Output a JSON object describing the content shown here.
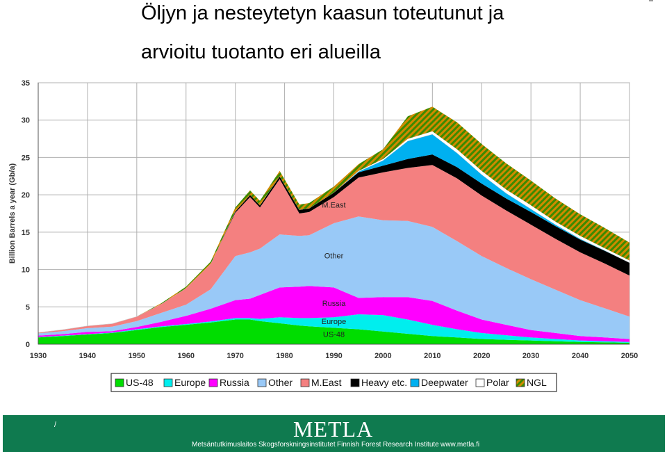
{
  "title": {
    "line1": "Öljyn ja nesteytetyn kaasun toteutunut ja",
    "line2": "arvioitu tuotanto eri alueilla"
  },
  "footer": {
    "slash": "/",
    "logo": "METLA",
    "org_fi": "Metsäntutkimuslaitos",
    "org_sv": "Skogsforskningsinstitutet",
    "org_en": "Finnish Forest Research Institute",
    "url": "www.metla.fi",
    "background_color": "#0f7a4f"
  },
  "chart_data": {
    "type": "area",
    "stacked": true,
    "title": "",
    "xlabel": "",
    "ylabel": "Billion Barrels a year (Gb/a)",
    "xlim": [
      1930,
      2050
    ],
    "ylim": [
      0,
      35
    ],
    "xticks": [
      1930,
      1940,
      1950,
      1960,
      1970,
      1980,
      1990,
      2000,
      2010,
      2020,
      2030,
      2040,
      2050
    ],
    "yticks": [
      0,
      5,
      10,
      15,
      20,
      25,
      30,
      35
    ],
    "grid": true,
    "legend": "bottom",
    "x": [
      1930,
      1935,
      1940,
      1945,
      1950,
      1955,
      1960,
      1965,
      1970,
      1973,
      1975,
      1979,
      1983,
      1985,
      1990,
      1995,
      2000,
      2005,
      2010,
      2015,
      2020,
      2025,
      2030,
      2035,
      2040,
      2045,
      2050
    ],
    "series": [
      {
        "name": "US-48",
        "color": "#00dd00",
        "values": [
          0.9,
          1.1,
          1.3,
          1.5,
          1.9,
          2.3,
          2.6,
          2.9,
          3.3,
          3.3,
          3.1,
          2.8,
          2.5,
          2.4,
          2.2,
          2.0,
          1.7,
          1.4,
          1.1,
          0.9,
          0.7,
          0.6,
          0.5,
          0.4,
          0.3,
          0.25,
          0.2
        ]
      },
      {
        "name": "Europe",
        "color": "#00eeee",
        "values": [
          0.05,
          0.05,
          0.05,
          0.05,
          0.1,
          0.1,
          0.1,
          0.15,
          0.2,
          0.2,
          0.3,
          0.8,
          1.0,
          1.1,
          1.4,
          2.0,
          2.2,
          1.9,
          1.5,
          1.1,
          0.8,
          0.6,
          0.4,
          0.3,
          0.2,
          0.15,
          0.1
        ]
      },
      {
        "name": "Russia",
        "color": "#ff00ff",
        "values": [
          0.2,
          0.2,
          0.3,
          0.2,
          0.3,
          0.6,
          1.1,
          1.7,
          2.4,
          2.6,
          3.2,
          4.0,
          4.2,
          4.3,
          4.0,
          2.2,
          2.4,
          3.0,
          3.2,
          2.5,
          1.8,
          1.4,
          1.0,
          0.8,
          0.6,
          0.5,
          0.4
        ]
      },
      {
        "name": "Other",
        "color": "#99c9f7",
        "values": [
          0.3,
          0.4,
          0.5,
          0.6,
          0.8,
          1.2,
          1.5,
          2.6,
          5.9,
          6.2,
          6.2,
          7.1,
          6.8,
          6.8,
          8.6,
          10.9,
          10.3,
          10.2,
          9.9,
          9.3,
          8.5,
          7.6,
          6.8,
          5.8,
          4.8,
          3.9,
          3.0
        ]
      },
      {
        "name": "M.East",
        "color": "#f48080",
        "values": [
          0.1,
          0.2,
          0.3,
          0.4,
          0.6,
          1.2,
          2.2,
          3.4,
          5.8,
          7.4,
          5.5,
          7.4,
          3.0,
          3.1,
          3.5,
          5.2,
          6.4,
          7.1,
          8.3,
          8.4,
          8.1,
          7.7,
          7.3,
          6.8,
          6.4,
          6.0,
          5.5
        ]
      },
      {
        "name": "Heavy etc.",
        "color": "#000000",
        "values": [
          0,
          0,
          0,
          0,
          0,
          0,
          0,
          0,
          0.2,
          0.3,
          0.3,
          0.4,
          0.5,
          0.5,
          0.6,
          0.7,
          0.9,
          1.2,
          1.4,
          1.5,
          1.6,
          1.6,
          1.7,
          1.7,
          1.7,
          1.7,
          1.7
        ]
      },
      {
        "name": "Deepwater",
        "color": "#00b0f0",
        "values": [
          0,
          0,
          0,
          0,
          0,
          0,
          0,
          0,
          0,
          0,
          0,
          0,
          0,
          0,
          0,
          0.1,
          0.7,
          2.4,
          2.7,
          1.9,
          1.2,
          0.7,
          0.4,
          0.2,
          0.1,
          0.05,
          0.02
        ]
      },
      {
        "name": "Polar",
        "color": "#ffffff",
        "values": [
          0,
          0,
          0,
          0,
          0,
          0,
          0,
          0,
          0,
          0,
          0,
          0,
          0,
          0,
          0,
          0.1,
          0.2,
          0.3,
          0.4,
          0.5,
          0.5,
          0.5,
          0.5,
          0.4,
          0.4,
          0.3,
          0.3
        ]
      },
      {
        "name": "NGL",
        "color": "#d08a00",
        "values": [
          0,
          0,
          0,
          0,
          0,
          0.1,
          0.2,
          0.3,
          0.5,
          0.6,
          0.6,
          0.7,
          0.7,
          0.7,
          0.8,
          0.9,
          1.3,
          3.0,
          3.3,
          3.6,
          3.6,
          3.5,
          3.3,
          3.1,
          2.9,
          2.7,
          2.4
        ]
      }
    ],
    "annotations": [
      {
        "text": "M.East",
        "x": 1990,
        "y": 18.3
      },
      {
        "text": "Other",
        "x": 1990,
        "y": 11.5
      },
      {
        "text": "Russia",
        "x": 1990,
        "y": 5.1
      },
      {
        "text": "Europe",
        "x": 1990,
        "y": 2.7
      },
      {
        "text": "US-48",
        "x": 1990,
        "y": 1.0
      }
    ]
  }
}
